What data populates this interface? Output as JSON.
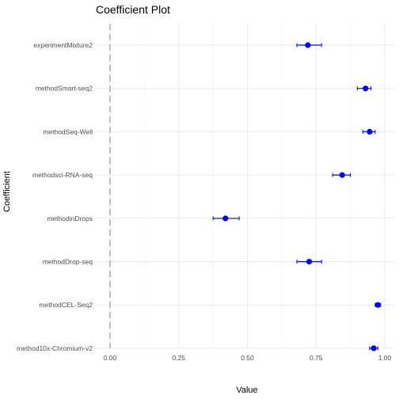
{
  "chart_data": {
    "type": "scatter",
    "subtype": "coefficient-dot-with-errorbars",
    "title": "Coefficient Plot",
    "xlabel": "Value",
    "ylabel": "Coefficient",
    "xlim": [
      0.0,
      1.0
    ],
    "xticks": [
      "0.00",
      "0.25",
      "0.50",
      "0.75",
      "1.00"
    ],
    "xtick_values": [
      0.0,
      0.25,
      0.5,
      0.75,
      1.0
    ],
    "reference_line": {
      "x": 0.0,
      "style": "dashed",
      "color": "#bfbfbf"
    },
    "grid": true,
    "legend": "none",
    "point_color": "#0000ff",
    "categories": [
      "experimentMixture2",
      "methodSmart-seq2",
      "methodSeq-Well",
      "methodsci-RNA-seq",
      "methodinDrops",
      "methodDrop-seq",
      "methodCEL-Seq2",
      "method10x-Chromium-v2"
    ],
    "points": [
      {
        "label": "experimentMixture2",
        "value": 0.72,
        "low": 0.68,
        "high": 0.77
      },
      {
        "label": "methodSmart-seq2",
        "value": 0.93,
        "low": 0.9,
        "high": 0.95
      },
      {
        "label": "methodSeq-Well",
        "value": 0.945,
        "low": 0.92,
        "high": 0.965
      },
      {
        "label": "methodsci-RNA-seq",
        "value": 0.845,
        "low": 0.81,
        "high": 0.875
      },
      {
        "label": "methodinDrops",
        "value": 0.42,
        "low": 0.375,
        "high": 0.47
      },
      {
        "label": "methodDrop-seq",
        "value": 0.725,
        "low": 0.68,
        "high": 0.77
      },
      {
        "label": "methodCEL-Seq2",
        "value": 0.975,
        "low": 0.965,
        "high": 0.985
      },
      {
        "label": "method10x-Chromium-v2",
        "value": 0.96,
        "low": 0.945,
        "high": 0.975
      }
    ]
  }
}
